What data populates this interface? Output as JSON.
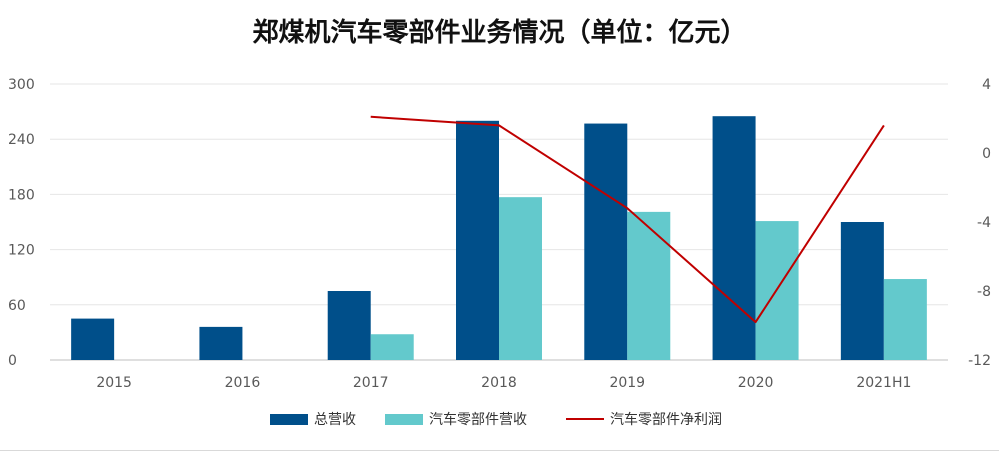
{
  "chart_data": {
    "type": "bar",
    "title": "郑煤机汽车零部件业务情况（单位：亿元）",
    "categories": [
      "2015",
      "2016",
      "2017",
      "2018",
      "2019",
      "2020",
      "2021H1"
    ],
    "y_left": {
      "ticks": [
        "0",
        "60",
        "120",
        "180",
        "240",
        "300"
      ],
      "lim": [
        0,
        300
      ]
    },
    "y_right": {
      "ticks": [
        "-12",
        "-8",
        "-4",
        "0",
        "4"
      ],
      "lim": [
        -12,
        4
      ]
    },
    "series": [
      {
        "name": "总营收",
        "type": "bar",
        "axis": "left",
        "color": "#004f8a",
        "values": [
          45,
          36,
          75,
          260,
          257,
          265,
          150
        ]
      },
      {
        "name": "汽车零部件营收",
        "type": "bar",
        "axis": "left",
        "color": "#63c9cc",
        "values": [
          null,
          null,
          28,
          177,
          161,
          151,
          88
        ]
      },
      {
        "name": "汽车零部件净利润",
        "type": "line",
        "axis": "right",
        "color": "#c00000",
        "values": [
          null,
          null,
          2.1,
          1.6,
          -3.2,
          -9.8,
          1.6
        ]
      }
    ],
    "grid": true,
    "legend_position": "bottom"
  }
}
